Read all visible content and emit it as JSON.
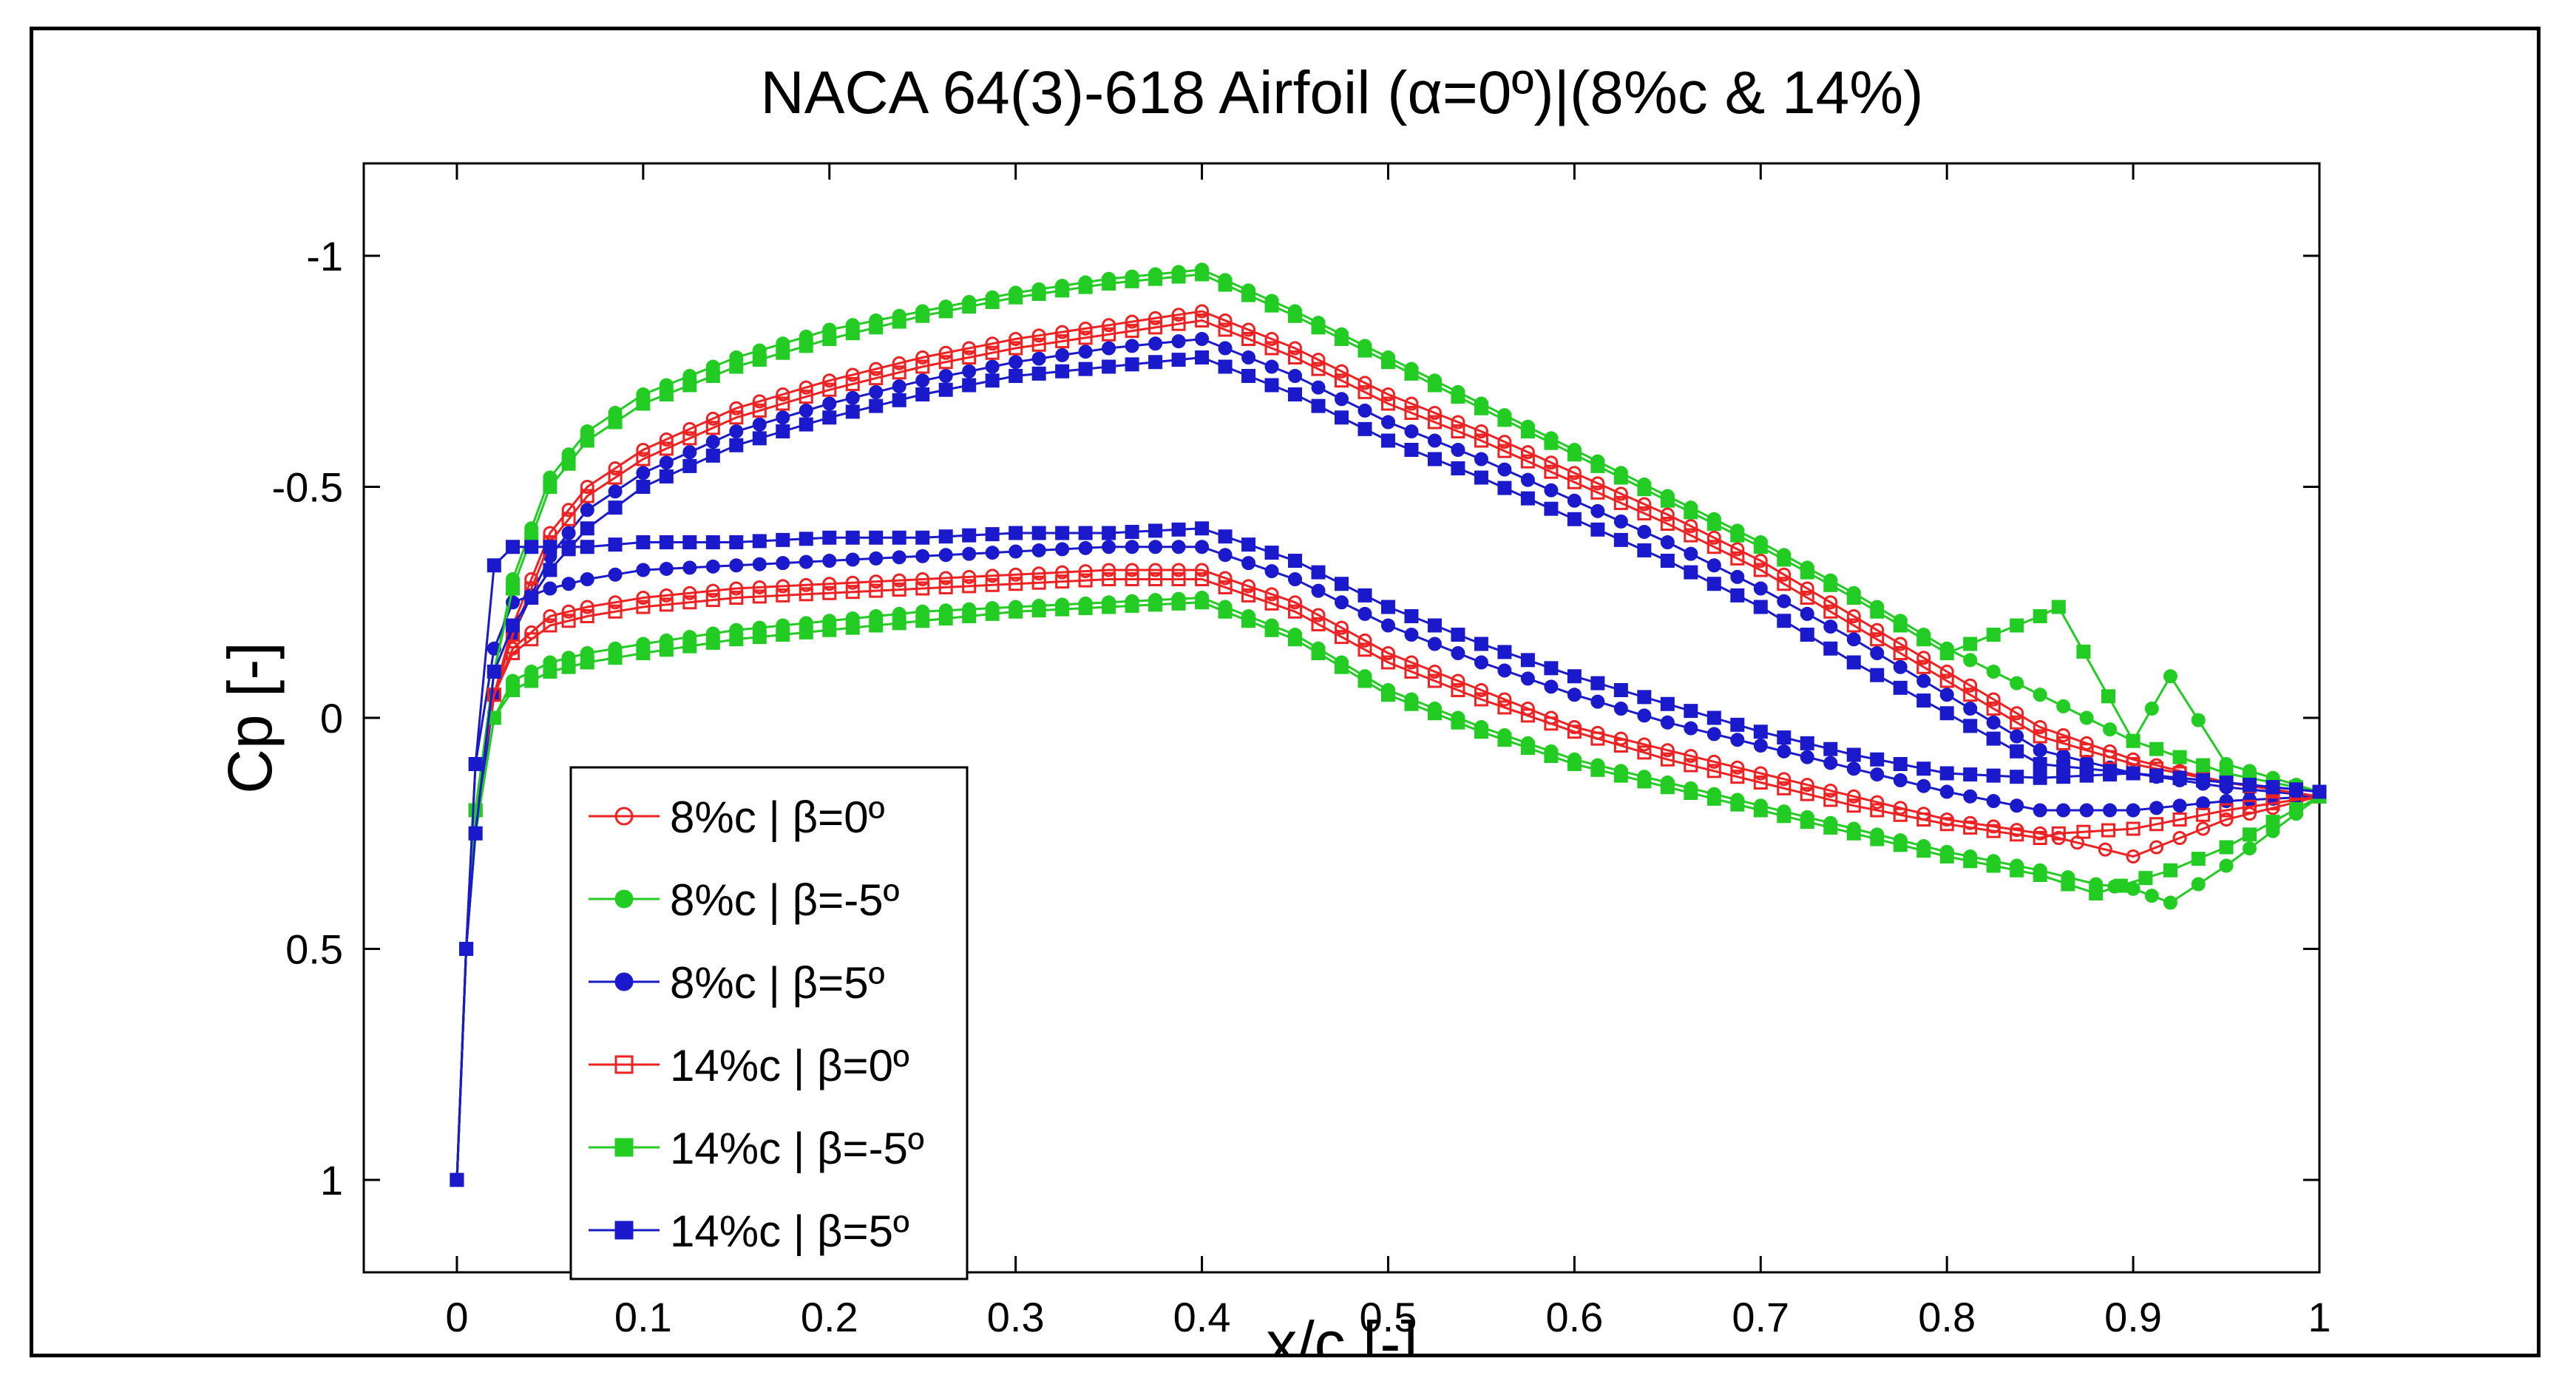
{
  "chart_data": {
    "type": "line",
    "title": "NACA 64(3)-618 Airfoil (α=0º)|(8%c & 14%)",
    "xlabel": "x/c [-]",
    "ylabel": "Cp [-]",
    "xlim": [
      -0.05,
      1.0
    ],
    "ylim": [
      1.2,
      -1.2
    ],
    "y_axis_reversed": true,
    "grid": false,
    "legend_position": "bottom-left",
    "x_ticks": [
      0,
      0.1,
      0.2,
      0.3,
      0.4,
      0.5,
      0.6,
      0.7,
      0.8,
      0.9,
      1
    ],
    "x_tick_labels": [
      "0",
      "0.1",
      "0.2",
      "0.3",
      "0.4",
      "0.5",
      "0.6",
      "0.7",
      "0.8",
      "0.9",
      "1"
    ],
    "y_ticks": [
      -1,
      -0.5,
      0,
      0.5,
      1
    ],
    "y_tick_labels": [
      "-1",
      "-0.5",
      "0",
      "0.5",
      "1"
    ],
    "series": [
      {
        "name": "8%c | β=0º",
        "color": "#ee2222",
        "marker": "circle-open",
        "upper": {
          "x": [
            0.0,
            0.005,
            0.01,
            0.02,
            0.03,
            0.05,
            0.07,
            0.1,
            0.15,
            0.2,
            0.25,
            0.3,
            0.35,
            0.4,
            0.45,
            0.5,
            0.55,
            0.6,
            0.65,
            0.7,
            0.75,
            0.8,
            0.85,
            0.9,
            0.95,
            1.0
          ],
          "y": [
            1.0,
            0.5,
            0.2,
            -0.05,
            -0.2,
            -0.4,
            -0.5,
            -0.58,
            -0.67,
            -0.73,
            -0.78,
            -0.82,
            -0.85,
            -0.88,
            -0.8,
            -0.7,
            -0.62,
            -0.53,
            -0.44,
            -0.34,
            -0.22,
            -0.1,
            0.02,
            0.09,
            0.14,
            0.17
          ]
        },
        "lower": {
          "x": [
            0.0,
            0.005,
            0.01,
            0.02,
            0.03,
            0.05,
            0.07,
            0.1,
            0.15,
            0.2,
            0.25,
            0.3,
            0.35,
            0.4,
            0.45,
            0.5,
            0.55,
            0.6,
            0.65,
            0.7,
            0.75,
            0.8,
            0.85,
            0.87,
            0.9,
            0.95,
            1.0
          ],
          "y": [
            1.0,
            0.5,
            0.2,
            -0.05,
            -0.15,
            -0.22,
            -0.24,
            -0.26,
            -0.28,
            -0.29,
            -0.3,
            -0.31,
            -0.32,
            -0.32,
            -0.25,
            -0.14,
            -0.06,
            0.02,
            0.07,
            0.12,
            0.17,
            0.22,
            0.25,
            0.27,
            0.3,
            0.22,
            0.17
          ]
        }
      },
      {
        "name": "8%c | β=-5º",
        "color": "#22cc22",
        "marker": "circle-filled",
        "upper": {
          "x": [
            0.0,
            0.005,
            0.01,
            0.02,
            0.03,
            0.05,
            0.07,
            0.1,
            0.15,
            0.2,
            0.25,
            0.3,
            0.35,
            0.4,
            0.45,
            0.5,
            0.55,
            0.6,
            0.65,
            0.7,
            0.75,
            0.8,
            0.85,
            0.9,
            0.92,
            0.95,
            1.0
          ],
          "y": [
            1.0,
            0.5,
            0.2,
            -0.1,
            -0.3,
            -0.52,
            -0.62,
            -0.7,
            -0.78,
            -0.84,
            -0.88,
            -0.92,
            -0.95,
            -0.97,
            -0.88,
            -0.78,
            -0.68,
            -0.58,
            -0.48,
            -0.38,
            -0.27,
            -0.15,
            -0.05,
            0.05,
            -0.09,
            0.1,
            0.16
          ]
        },
        "lower": {
          "x": [
            0.0,
            0.005,
            0.01,
            0.02,
            0.03,
            0.05,
            0.07,
            0.1,
            0.15,
            0.2,
            0.25,
            0.3,
            0.35,
            0.4,
            0.45,
            0.5,
            0.55,
            0.6,
            0.65,
            0.7,
            0.75,
            0.8,
            0.85,
            0.88,
            0.9,
            0.92,
            0.95,
            1.0
          ],
          "y": [
            1.0,
            0.5,
            0.25,
            0.0,
            -0.08,
            -0.12,
            -0.14,
            -0.16,
            -0.19,
            -0.21,
            -0.23,
            -0.24,
            -0.25,
            -0.26,
            -0.18,
            -0.06,
            0.02,
            0.09,
            0.14,
            0.19,
            0.24,
            0.29,
            0.33,
            0.36,
            0.37,
            0.4,
            0.32,
            0.17
          ]
        }
      },
      {
        "name": "8%c | β=5º",
        "color": "#1a1acc",
        "marker": "circle-filled",
        "upper": {
          "x": [
            0.0,
            0.005,
            0.01,
            0.02,
            0.03,
            0.05,
            0.07,
            0.1,
            0.15,
            0.2,
            0.25,
            0.3,
            0.35,
            0.4,
            0.45,
            0.5,
            0.55,
            0.6,
            0.65,
            0.7,
            0.75,
            0.8,
            0.85,
            0.9,
            0.95,
            1.0
          ],
          "y": [
            1.0,
            0.5,
            0.25,
            -0.05,
            -0.18,
            -0.35,
            -0.45,
            -0.53,
            -0.62,
            -0.68,
            -0.73,
            -0.77,
            -0.8,
            -0.82,
            -0.74,
            -0.64,
            -0.56,
            -0.47,
            -0.38,
            -0.28,
            -0.17,
            -0.05,
            0.07,
            0.12,
            0.15,
            0.17
          ]
        },
        "lower": {
          "x": [
            0.0,
            0.005,
            0.01,
            0.02,
            0.03,
            0.05,
            0.07,
            0.1,
            0.15,
            0.2,
            0.25,
            0.3,
            0.35,
            0.4,
            0.45,
            0.5,
            0.55,
            0.6,
            0.65,
            0.7,
            0.75,
            0.8,
            0.85,
            0.9,
            0.95,
            1.0
          ],
          "y": [
            1.0,
            0.5,
            0.1,
            -0.15,
            -0.25,
            -0.28,
            -0.3,
            -0.32,
            -0.33,
            -0.34,
            -0.35,
            -0.36,
            -0.37,
            -0.37,
            -0.3,
            -0.2,
            -0.12,
            -0.05,
            0.01,
            0.06,
            0.11,
            0.16,
            0.2,
            0.2,
            0.18,
            0.17
          ]
        }
      },
      {
        "name": "14%c | β=0º",
        "color": "#ee2222",
        "marker": "square-open",
        "upper": {
          "x": [
            0.0,
            0.005,
            0.01,
            0.02,
            0.03,
            0.05,
            0.07,
            0.1,
            0.15,
            0.2,
            0.25,
            0.3,
            0.35,
            0.4,
            0.45,
            0.5,
            0.55,
            0.6,
            0.65,
            0.7,
            0.75,
            0.8,
            0.85,
            0.9,
            0.95,
            1.0
          ],
          "y": [
            1.0,
            0.5,
            0.2,
            -0.05,
            -0.18,
            -0.38,
            -0.48,
            -0.56,
            -0.65,
            -0.71,
            -0.76,
            -0.8,
            -0.83,
            -0.86,
            -0.78,
            -0.68,
            -0.6,
            -0.51,
            -0.42,
            -0.32,
            -0.2,
            -0.08,
            0.04,
            0.1,
            0.14,
            0.17
          ]
        },
        "lower": {
          "x": [
            0.0,
            0.005,
            0.01,
            0.02,
            0.03,
            0.05,
            0.07,
            0.1,
            0.15,
            0.2,
            0.25,
            0.3,
            0.35,
            0.4,
            0.45,
            0.5,
            0.55,
            0.6,
            0.65,
            0.7,
            0.75,
            0.8,
            0.85,
            0.86,
            0.9,
            0.95,
            1.0
          ],
          "y": [
            1.0,
            0.5,
            0.2,
            -0.05,
            -0.14,
            -0.2,
            -0.22,
            -0.24,
            -0.26,
            -0.27,
            -0.28,
            -0.29,
            -0.3,
            -0.3,
            -0.23,
            -0.12,
            -0.04,
            0.03,
            0.09,
            0.14,
            0.19,
            0.23,
            0.26,
            0.25,
            0.24,
            0.2,
            0.17
          ]
        }
      },
      {
        "name": "14%c | β=-5º",
        "color": "#22cc22",
        "marker": "square-filled",
        "upper": {
          "x": [
            0.0,
            0.005,
            0.01,
            0.02,
            0.03,
            0.05,
            0.07,
            0.1,
            0.15,
            0.2,
            0.25,
            0.3,
            0.35,
            0.4,
            0.45,
            0.5,
            0.55,
            0.6,
            0.65,
            0.7,
            0.75,
            0.8,
            0.85,
            0.86,
            0.9,
            0.95,
            1.0
          ],
          "y": [
            1.0,
            0.5,
            0.2,
            -0.1,
            -0.28,
            -0.5,
            -0.6,
            -0.68,
            -0.76,
            -0.82,
            -0.87,
            -0.91,
            -0.94,
            -0.96,
            -0.87,
            -0.77,
            -0.67,
            -0.57,
            -0.47,
            -0.37,
            -0.26,
            -0.14,
            -0.22,
            -0.24,
            0.05,
            0.12,
            0.16
          ]
        },
        "lower": {
          "x": [
            0.0,
            0.005,
            0.01,
            0.02,
            0.03,
            0.05,
            0.07,
            0.1,
            0.15,
            0.2,
            0.25,
            0.3,
            0.35,
            0.4,
            0.45,
            0.5,
            0.55,
            0.6,
            0.65,
            0.7,
            0.75,
            0.8,
            0.85,
            0.88,
            0.92,
            0.95,
            1.0
          ],
          "y": [
            1.0,
            0.5,
            0.25,
            0.0,
            -0.06,
            -0.1,
            -0.12,
            -0.14,
            -0.17,
            -0.19,
            -0.21,
            -0.23,
            -0.24,
            -0.25,
            -0.17,
            -0.05,
            0.03,
            0.1,
            0.15,
            0.2,
            0.25,
            0.3,
            0.34,
            0.38,
            0.33,
            0.28,
            0.17
          ]
        }
      },
      {
        "name": "14%c | β=5º",
        "color": "#1a1acc",
        "marker": "square-filled",
        "upper": {
          "x": [
            0.0,
            0.005,
            0.01,
            0.02,
            0.03,
            0.05,
            0.07,
            0.1,
            0.15,
            0.2,
            0.25,
            0.3,
            0.35,
            0.4,
            0.45,
            0.5,
            0.55,
            0.6,
            0.65,
            0.7,
            0.75,
            0.8,
            0.85,
            0.9,
            0.95,
            1.0
          ],
          "y": [
            1.0,
            0.5,
            0.25,
            -0.1,
            -0.2,
            -0.32,
            -0.41,
            -0.5,
            -0.59,
            -0.65,
            -0.7,
            -0.74,
            -0.76,
            -0.78,
            -0.7,
            -0.6,
            -0.52,
            -0.43,
            -0.34,
            -0.24,
            -0.12,
            -0.01,
            0.1,
            0.12,
            0.14,
            0.16
          ]
        },
        "lower": {
          "x": [
            0.0,
            0.005,
            0.01,
            0.02,
            0.03,
            0.05,
            0.07,
            0.1,
            0.15,
            0.2,
            0.25,
            0.3,
            0.35,
            0.4,
            0.45,
            0.5,
            0.55,
            0.6,
            0.65,
            0.7,
            0.75,
            0.8,
            0.85,
            0.9,
            0.95,
            1.0
          ],
          "y": [
            1.0,
            0.5,
            0.1,
            -0.33,
            -0.37,
            -0.37,
            -0.37,
            -0.38,
            -0.38,
            -0.39,
            -0.39,
            -0.4,
            -0.4,
            -0.41,
            -0.34,
            -0.24,
            -0.16,
            -0.09,
            -0.03,
            0.03,
            0.08,
            0.12,
            0.13,
            0.12,
            0.14,
            0.16
          ]
        }
      }
    ]
  }
}
